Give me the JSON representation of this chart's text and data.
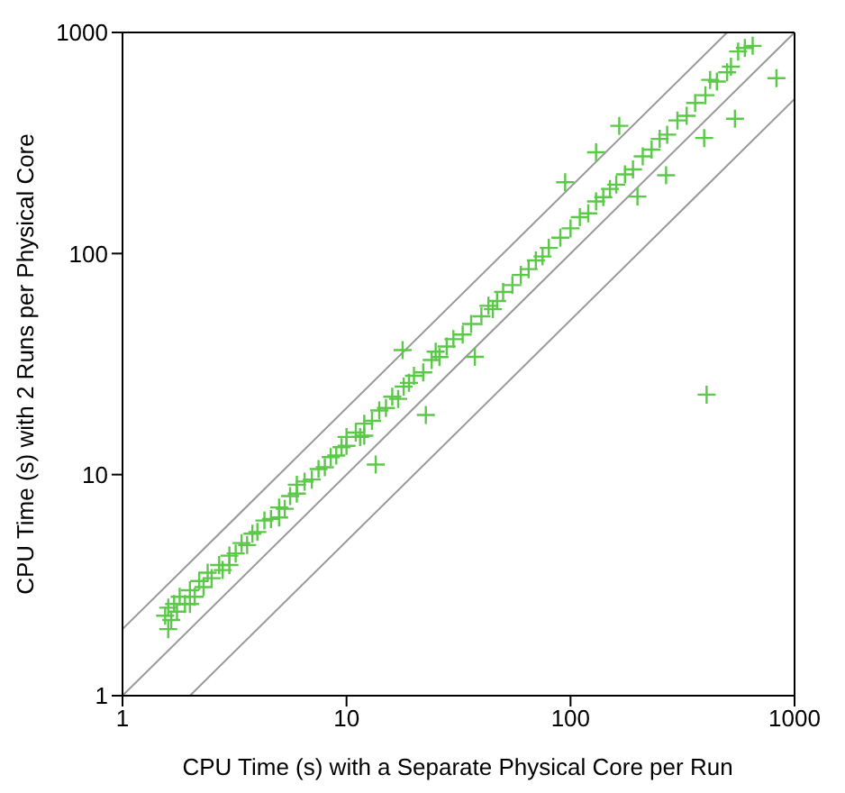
{
  "chart_data": {
    "type": "scatter",
    "xlabel": "CPU Time (s) with a Separate Physical Core per Run",
    "ylabel": "CPU Time (s) with 2 Runs per Physical Core",
    "log": "xy",
    "grid": false,
    "marker": "cross",
    "xlim": [
      1,
      1000
    ],
    "ylim": [
      1,
      1000
    ],
    "xticks": [
      1,
      10,
      100,
      1000
    ],
    "yticks": [
      1,
      10,
      100,
      1000
    ],
    "series": [
      {
        "type": "line",
        "marker": "none",
        "color": "#999999",
        "x": [
          1,
          500
        ],
        "values": [
          2,
          1000
        ]
      },
      {
        "type": "line",
        "marker": "none",
        "color": "#999999",
        "x": [
          1,
          1000
        ],
        "values": [
          1,
          1000
        ]
      },
      {
        "type": "line",
        "marker": "none",
        "color": "#999999",
        "x": [
          2,
          1000
        ],
        "values": [
          1,
          500
        ]
      },
      {
        "color": "#5cc84a",
        "x": [
          1.55,
          1.6,
          1.65,
          1.7,
          1.75,
          1.8,
          1.9,
          2.0,
          2.1,
          2.2,
          2.3,
          2.4,
          2.5,
          2.7,
          2.8,
          3.0,
          3.2,
          3.4,
          3.6,
          3.8,
          4.0,
          4.3,
          4.6,
          5.0,
          5.3,
          5.6,
          6.0,
          6.5,
          7.0,
          7.5,
          8.0,
          8.5,
          9.0,
          9.5,
          10,
          11,
          11.5,
          12,
          13,
          14,
          15,
          16,
          17,
          18,
          19,
          20,
          22,
          24,
          26,
          28,
          30,
          33,
          36,
          40,
          43,
          47,
          50,
          55,
          60,
          65,
          70,
          75,
          80,
          90,
          100,
          110,
          120,
          130,
          140,
          150,
          160,
          175,
          190,
          210,
          230,
          250,
          270,
          300,
          330,
          360,
          400,
          450,
          500,
          560,
          600,
          650,
          520,
          420,
          1.6,
          2.0,
          3,
          5,
          10,
          12,
          6,
          25,
          45,
          165,
          830,
          542,
          395,
          267,
          199,
          405,
          130,
          22.6,
          13.5,
          37.4,
          17.8,
          94.6
        ],
        "values": [
          2.3,
          2.5,
          2.2,
          2.6,
          2.4,
          2.8,
          2.6,
          3.0,
          2.8,
          3.3,
          3.1,
          3.6,
          3.4,
          3.9,
          3.7,
          4.3,
          4.4,
          4.9,
          4.8,
          5.4,
          5.5,
          6.2,
          6.3,
          7.1,
          7.0,
          8.0,
          8.2,
          9.3,
          9.5,
          10.6,
          10.8,
          12,
          12.2,
          13.3,
          13.5,
          15.5,
          14.8,
          17,
          17.5,
          19.5,
          20,
          22.5,
          22,
          25,
          26,
          28,
          29,
          33,
          34,
          38,
          41,
          43,
          48,
          52,
          58,
          61,
          67,
          72,
          80,
          85,
          93,
          97,
          106,
          118,
          130,
          146,
          152,
          172,
          180,
          196,
          205,
          228,
          240,
          275,
          295,
          330,
          345,
          400,
          420,
          480,
          520,
          600,
          660,
          820,
          850,
          870,
          700,
          610,
          2.0,
          2.6,
          3.9,
          6.4,
          14.8,
          15,
          9,
          36,
          56,
          378,
          621,
          407,
          333,
          226,
          181,
          23,
          287,
          18.6,
          11.1,
          34.1,
          36.6,
          210
        ]
      }
    ]
  }
}
